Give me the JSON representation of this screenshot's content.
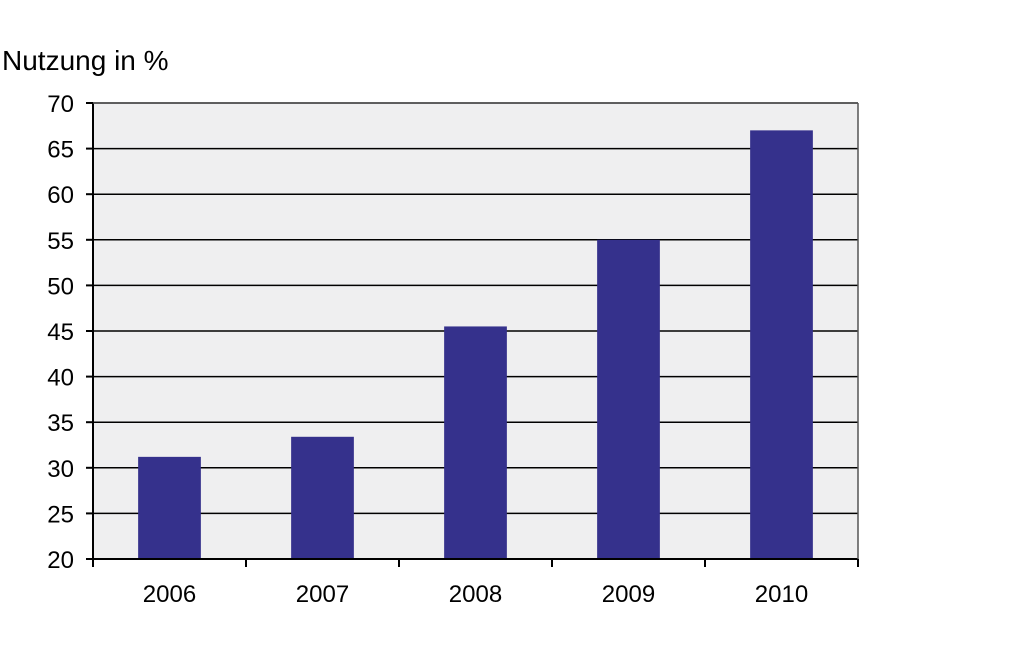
{
  "chart_data": {
    "type": "bar",
    "title": "",
    "xlabel": "",
    "ylabel": "Nutzung in %",
    "categories": [
      "2006",
      "2007",
      "2008",
      "2009",
      "2010"
    ],
    "values": [
      31.2,
      33.4,
      45.5,
      55,
      67
    ],
    "ylim": [
      20,
      70
    ],
    "yticks": [
      "20",
      "25",
      "30",
      "35",
      "40",
      "45",
      "50",
      "55",
      "60",
      "65",
      "70"
    ],
    "grid": "horizontal",
    "legend": "none",
    "colors": {
      "bar": "#35318c",
      "plot_background": "#efeff0",
      "grid": "#000000"
    }
  }
}
